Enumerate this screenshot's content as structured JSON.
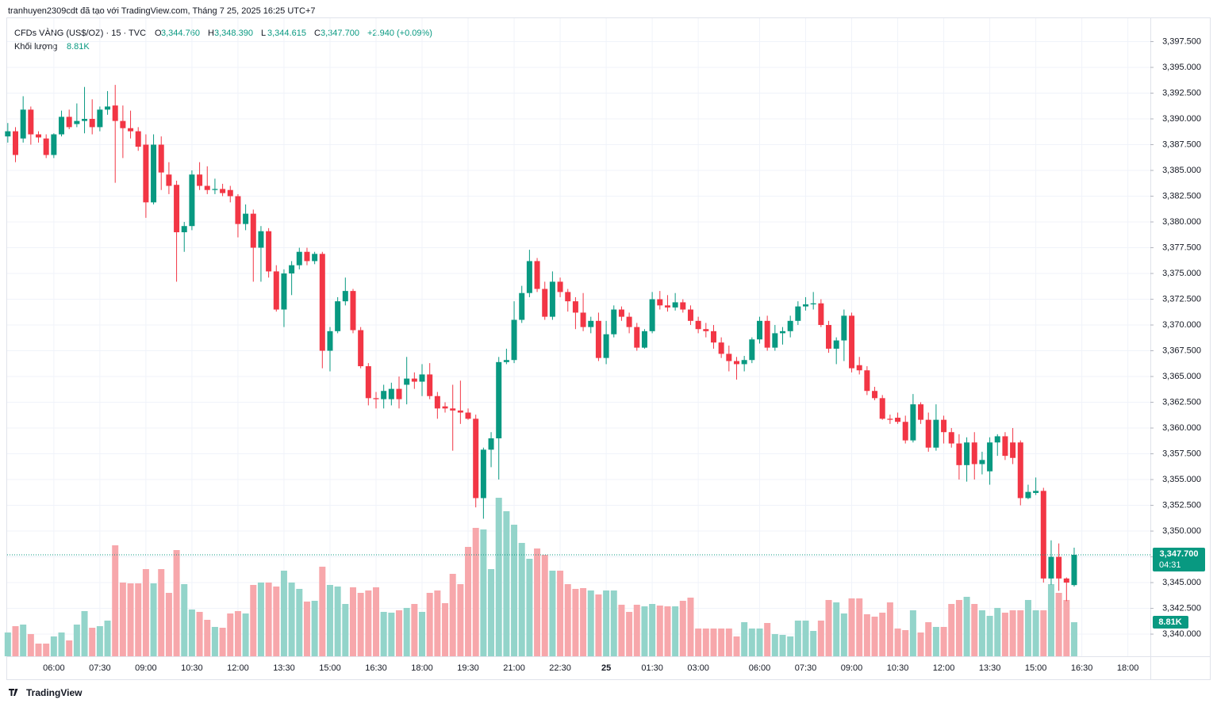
{
  "header": "tranhuyen2309cdt đã tạo với TradingView.com, Tháng 7 25, 2025 16:25 UTC+7",
  "footer": "TradingView",
  "chart_data": {
    "type": "candlestick",
    "legend": {
      "symbol": "CFDs VÀNG (US$/OZ) · 15 · TVC",
      "items": [
        {
          "key": "O",
          "value": "3,344.760"
        },
        {
          "key": "H",
          "value": "3,348.390"
        },
        {
          "key": "L",
          "value": "3,344.615"
        },
        {
          "key": "C",
          "value": "3,347.700"
        }
      ],
      "change": "+2.940 (+0.09%)",
      "volume_name": "Khối lượng"
    },
    "up_color": "#089981",
    "down_color": "#f23645",
    "volume_up_color": "#93d4ca",
    "volume_down_color": "#f7a7ab",
    "grid": true,
    "last_price_label": "3,347.700",
    "countdown": "04:31",
    "volume_label": "8.81K",
    "ylim": [
      3337.85,
      3400
    ],
    "yticks": [
      {
        "value": 3340,
        "label": "3,340.000"
      },
      {
        "value": 3342.5,
        "label": "3,342.500"
      },
      {
        "value": 3345,
        "label": "3,345.000"
      },
      {
        "value": 3347.5,
        "label": "3,347.500"
      },
      {
        "value": 3350,
        "label": "3,350.000"
      },
      {
        "value": 3352.5,
        "label": "3,352.500"
      },
      {
        "value": 3355,
        "label": "3,355.000"
      },
      {
        "value": 3357.5,
        "label": "3,357.500"
      },
      {
        "value": 3360,
        "label": "3,360.000"
      },
      {
        "value": 3362.5,
        "label": "3,362.500"
      },
      {
        "value": 3365,
        "label": "3,365.000"
      },
      {
        "value": 3367.5,
        "label": "3,367.500"
      },
      {
        "value": 3370,
        "label": "3,370.000"
      },
      {
        "value": 3372.5,
        "label": "3,372.500"
      },
      {
        "value": 3375,
        "label": "3,375.000"
      },
      {
        "value": 3377.5,
        "label": "3,377.500"
      },
      {
        "value": 3380,
        "label": "3,380.000"
      },
      {
        "value": 3382.5,
        "label": "3,382.500"
      },
      {
        "value": 3385,
        "label": "3,385.000"
      },
      {
        "value": 3387.5,
        "label": "3,387.500"
      },
      {
        "value": 3390,
        "label": "3,390.000"
      },
      {
        "value": 3392.5,
        "label": "3,392.500"
      },
      {
        "value": 3395,
        "label": "3,395.000"
      },
      {
        "value": 3397.5,
        "label": "3,397.500"
      }
    ],
    "categories": [
      null,
      null,
      null,
      null,
      null,
      null,
      "06:00",
      null,
      null,
      null,
      null,
      null,
      "07:30",
      null,
      null,
      null,
      null,
      null,
      "09:00",
      null,
      null,
      null,
      null,
      null,
      "10:30",
      null,
      null,
      null,
      null,
      null,
      "12:00",
      null,
      null,
      null,
      null,
      null,
      "13:30",
      null,
      null,
      null,
      null,
      null,
      "15:00",
      null,
      null,
      null,
      null,
      null,
      "16:30",
      null,
      null,
      null,
      null,
      null,
      "18:00",
      null,
      null,
      null,
      null,
      null,
      "19:30",
      null,
      null,
      null,
      null,
      null,
      "21:00",
      null,
      null,
      null,
      null,
      null,
      "22:30",
      null,
      null,
      null,
      null,
      null,
      "25",
      null,
      null,
      null,
      null,
      null,
      "01:30",
      null,
      null,
      null,
      null,
      null,
      "03:00",
      null,
      null,
      null,
      null,
      null,
      null,
      null,
      "06:00",
      null,
      null,
      null,
      null,
      null,
      "07:30",
      null,
      null,
      null,
      null,
      null,
      "09:00",
      null,
      null,
      null,
      null,
      null,
      "10:30",
      null,
      null,
      null,
      null,
      null,
      "12:00",
      null,
      null,
      null,
      null,
      null,
      "13:30",
      null,
      null,
      null,
      null,
      null,
      "15:00",
      null,
      null,
      null,
      null,
      null,
      "16:30",
      null,
      null,
      null,
      null,
      null,
      "18:00"
    ],
    "open": [
      3388.3,
      3388.8,
      3388.1,
      3390.9,
      3388.5,
      3388.1,
      3386.5,
      3388.5,
      3390.2,
      3389.5,
      3389.8,
      3390.0,
      3389.2,
      3390.9,
      3391.3,
      3389.8,
      3389.1,
      3388.8,
      3387.5,
      3381.9,
      3387.5,
      3384.6,
      3383.6,
      3379.0,
      3379.6,
      3384.6,
      3383.5,
      3383.1,
      3383.2,
      3383.1,
      3382.5,
      3379.8,
      3380.8,
      3377.5,
      3379.1,
      3375.2,
      3371.5,
      3375.0,
      3375.8,
      3377.1,
      3376.2,
      3376.9,
      3367.5,
      3369.4,
      3372.3,
      3373.3,
      3369.5,
      3366.0,
      3362.9,
      3362.8,
      3362.8,
      3363.8,
      3364.2,
      3364.8,
      3364.5,
      3365.2,
      3363.1,
      3362.1,
      3361.9,
      3361.7,
      3361.5,
      3360.9,
      3353.2,
      3357.9,
      3359.0,
      3366.4,
      3366.6,
      3370.5,
      3373.1,
      3376.2,
      3373.5,
      3370.8,
      3374.2,
      3373.2,
      3372.3,
      3371.2,
      3369.8,
      3370.4,
      3366.8,
      3369.1,
      3371.5,
      3370.8,
      3369.8,
      3367.8,
      3369.4,
      3372.5,
      3371.9,
      3371.7,
      3372.2,
      3371.5,
      3370.4,
      3369.6,
      3369.4,
      3368.3,
      3367.2,
      3366.5,
      3366.2,
      3366.6,
      3368.6,
      3370.4,
      3367.8,
      3369.2,
      3369.4,
      3370.4,
      3371.8,
      3372.0,
      3372.1,
      3370.0,
      3367.7,
      3368.5,
      3370.9,
      3366.1,
      3365.6,
      3363.6,
      3362.9,
      3360.9,
      3361.0,
      3360.6,
      3358.8,
      3362.3,
      3360.8,
      3358.1,
      3360.8,
      3359.6,
      3358.5,
      3356.4,
      3358.6,
      3356.5,
      3355.8,
      3358.6,
      3359.2,
      3358.6,
      3358.6,
      3353.2,
      3353.7,
      3353.9,
      3345.4,
      3347.5,
      3345.4,
      3344.76,
      null,
      null,
      null,
      null,
      null,
      null,
      null
    ],
    "high": [
      3389.6,
      3389.2,
      3392.2,
      3391.2,
      3388.8,
      3388.5,
      3388.6,
      3390.8,
      3390.9,
      3391.5,
      3393.1,
      3391.9,
      3391.2,
      3392.7,
      3393.3,
      3391.3,
      3390.8,
      3389.2,
      3388.5,
      3388.5,
      3388.3,
      3385.8,
      3384.0,
      3380.0,
      3385.0,
      3385.8,
      3385.4,
      3384.2,
      3383.7,
      3383.5,
      3382.7,
      3381.7,
      3381.2,
      3379.6,
      3379.4,
      3375.8,
      3375.4,
      3376.2,
      3377.5,
      3377.5,
      3377.1,
      3377.1,
      3369.8,
      3372.7,
      3374.6,
      3373.5,
      3369.8,
      3366.3,
      3363.5,
      3364.2,
      3364.4,
      3365.0,
      3366.9,
      3365.4,
      3366.2,
      3366.3,
      3363.5,
      3362.5,
      3364.2,
      3364.6,
      3361.9,
      3361.3,
      3358.1,
      3359.6,
      3366.9,
      3367.7,
      3372.3,
      3373.8,
      3377.3,
      3376.5,
      3374.2,
      3375.2,
      3374.6,
      3373.5,
      3372.7,
      3373.1,
      3370.8,
      3371.2,
      3370.4,
      3371.9,
      3371.8,
      3371.2,
      3370.2,
      3369.6,
      3373.2,
      3373.3,
      3372.9,
      3373.1,
      3372.5,
      3371.9,
      3370.8,
      3370.2,
      3370.0,
      3368.8,
      3368.0,
      3366.9,
      3367.0,
      3368.8,
      3370.8,
      3370.9,
      3370.0,
      3369.8,
      3370.9,
      3372.3,
      3372.7,
      3373.2,
      3372.5,
      3370.4,
      3368.8,
      3371.5,
      3371.2,
      3366.9,
      3366.0,
      3364.0,
      3363.2,
      3361.3,
      3361.5,
      3361.2,
      3363.3,
      3362.5,
      3361.5,
      3362.3,
      3361.2,
      3360.0,
      3359.4,
      3359.1,
      3359.6,
      3357.7,
      3359.1,
      3359.4,
      3359.6,
      3360.0,
      3358.8,
      3354.5,
      3355.2,
      3354.2,
      3349.1,
      3348.8,
      3345.5,
      3348.39,
      null,
      null,
      null,
      null,
      null,
      null,
      null
    ],
    "low": [
      3387.7,
      3385.8,
      3387.7,
      3387.5,
      3387.7,
      3386.2,
      3386.2,
      3388.3,
      3389.0,
      3389.2,
      3388.6,
      3388.5,
      3388.8,
      3390.4,
      3383.8,
      3386.2,
      3388.1,
      3386.9,
      3380.4,
      3381.7,
      3383.1,
      3382.7,
      3374.2,
      3377.1,
      3379.2,
      3383.1,
      3382.7,
      3382.7,
      3382.5,
      3381.9,
      3378.5,
      3379.2,
      3374.2,
      3374.2,
      3374.6,
      3371.3,
      3369.8,
      3372.9,
      3375.4,
      3375.8,
      3375.9,
      3365.8,
      3365.5,
      3369.2,
      3371.9,
      3369.2,
      3365.8,
      3362.2,
      3361.9,
      3361.9,
      3362.2,
      3361.9,
      3362.3,
      3363.8,
      3363.1,
      3362.8,
      3360.9,
      3361.5,
      3357.8,
      3360.4,
      3360.8,
      3352.3,
      3351.2,
      3356.2,
      3355.0,
      3366.2,
      3366.3,
      3370.2,
      3372.7,
      3373.2,
      3370.5,
      3370.5,
      3372.7,
      3371.3,
      3369.6,
      3369.4,
      3369.2,
      3366.5,
      3366.2,
      3368.8,
      3370.4,
      3369.2,
      3367.5,
      3367.7,
      3369.2,
      3371.5,
      3371.3,
      3371.4,
      3371.2,
      3370.0,
      3369.2,
      3368.8,
      3367.7,
      3366.8,
      3365.5,
      3364.7,
      3365.5,
      3366.3,
      3368.2,
      3367.5,
      3367.5,
      3368.1,
      3368.8,
      3370.0,
      3371.4,
      3371.5,
      3369.8,
      3367.3,
      3366.2,
      3366.5,
      3365.4,
      3365.2,
      3363.2,
      3362.7,
      3360.8,
      3360.4,
      3360.4,
      3358.5,
      3358.6,
      3360.4,
      3357.7,
      3357.8,
      3358.5,
      3358.1,
      3355.0,
      3354.8,
      3355.0,
      3355.5,
      3354.5,
      3357.3,
      3356.9,
      3356.5,
      3352.5,
      3353.1,
      3353.5,
      3345.0,
      3344.8,
      3344.2,
      3343.2,
      3344.615,
      null,
      null,
      null,
      null,
      null,
      null,
      null
    ],
    "close": [
      3388.8,
      3386.5,
      3390.9,
      3388.5,
      3388.2,
      3386.5,
      3388.5,
      3390.2,
      3389.2,
      3389.8,
      3390.0,
      3389.2,
      3390.9,
      3391.2,
      3389.8,
      3389.1,
      3388.8,
      3387.3,
      3381.9,
      3387.5,
      3384.8,
      3383.5,
      3379.0,
      3379.6,
      3384.6,
      3383.5,
      3383.1,
      3383.2,
      3382.8,
      3382.5,
      3379.8,
      3380.8,
      3377.5,
      3379.1,
      3375.2,
      3371.5,
      3375.0,
      3375.8,
      3377.1,
      3376.2,
      3376.9,
      3367.5,
      3369.4,
      3372.3,
      3373.3,
      3369.5,
      3366.0,
      3362.9,
      3362.8,
      3363.6,
      3363.8,
      3362.8,
      3364.8,
      3364.5,
      3365.2,
      3363.1,
      3361.9,
      3361.9,
      3361.7,
      3361.5,
      3360.9,
      3353.2,
      3357.9,
      3359.0,
      3366.4,
      3366.6,
      3370.5,
      3373.1,
      3376.2,
      3373.5,
      3370.8,
      3374.2,
      3373.2,
      3372.3,
      3371.2,
      3369.8,
      3370.4,
      3366.8,
      3369.1,
      3371.5,
      3370.8,
      3369.8,
      3367.8,
      3369.4,
      3372.5,
      3371.9,
      3371.7,
      3372.2,
      3371.5,
      3370.4,
      3369.6,
      3369.4,
      3368.3,
      3367.2,
      3366.5,
      3366.2,
      3366.6,
      3368.6,
      3370.4,
      3367.8,
      3369.2,
      3369.4,
      3370.4,
      3371.8,
      3372.0,
      3372.1,
      3370.0,
      3367.7,
      3368.5,
      3370.9,
      3365.8,
      3365.6,
      3363.6,
      3362.9,
      3360.9,
      3360.8,
      3360.6,
      3358.8,
      3362.3,
      3360.8,
      3358.1,
      3360.8,
      3359.6,
      3358.5,
      3356.4,
      3358.6,
      3356.5,
      3356.9,
      3358.6,
      3359.2,
      3357.3,
      3357.1,
      3353.2,
      3353.8,
      3353.9,
      3345.4,
      3347.5,
      3345.4,
      3345.0,
      3347.7,
      null,
      null,
      null,
      null,
      null,
      null,
      null
    ],
    "volume": [
      6.15,
      7.79,
      8.2,
      5.74,
      3.28,
      3.28,
      5.13,
      6.15,
      4.1,
      8.2,
      11.69,
      7.38,
      7.79,
      9.23,
      28.7,
      19.07,
      18.86,
      18.86,
      22.55,
      18.86,
      22.55,
      16.4,
      27.47,
      18.66,
      12.1,
      11.48,
      9.43,
      7.59,
      7.38,
      11.07,
      11.69,
      11.07,
      18.45,
      19.07,
      19.07,
      18.04,
      22.14,
      19.07,
      17.43,
      14.15,
      14.35,
      23.17,
      18.45,
      18.04,
      13.53,
      17.84,
      16.4,
      17.02,
      17.84,
      11.48,
      11.28,
      11.89,
      12.51,
      13.53,
      11.48,
      16.4,
      17.02,
      13.74,
      21.32,
      18.66,
      28.29,
      33.21,
      32.8,
      22.55,
      41.0,
      37.52,
      34.03,
      29.32,
      25.22,
      27.88,
      26.24,
      22.14,
      22.14,
      18.66,
      17.43,
      17.63,
      17.02,
      15.99,
      17.02,
      17.02,
      13.33,
      11.48,
      13.33,
      12.92,
      13.53,
      13.12,
      12.92,
      12.92,
      14.35,
      15.17,
      7.18,
      7.18,
      7.18,
      7.18,
      7.18,
      5.13,
      8.82,
      7.18,
      7.18,
      8.61,
      5.74,
      5.54,
      5.13,
      9.23,
      9.23,
      6.56,
      9.23,
      14.56,
      13.94,
      11.07,
      14.97,
      14.97,
      10.87,
      10.25,
      11.28,
      13.94,
      7.18,
      6.77,
      11.89,
      6.15,
      8.82,
      7.59,
      7.59,
      13.53,
      14.56,
      15.38,
      13.53,
      11.89,
      10.46,
      12.51,
      11.28,
      11.89,
      11.89,
      14.56,
      11.89,
      11.89,
      18.66,
      16.4,
      14.56,
      8.81,
      null,
      null,
      null,
      null,
      null,
      null,
      null
    ]
  }
}
